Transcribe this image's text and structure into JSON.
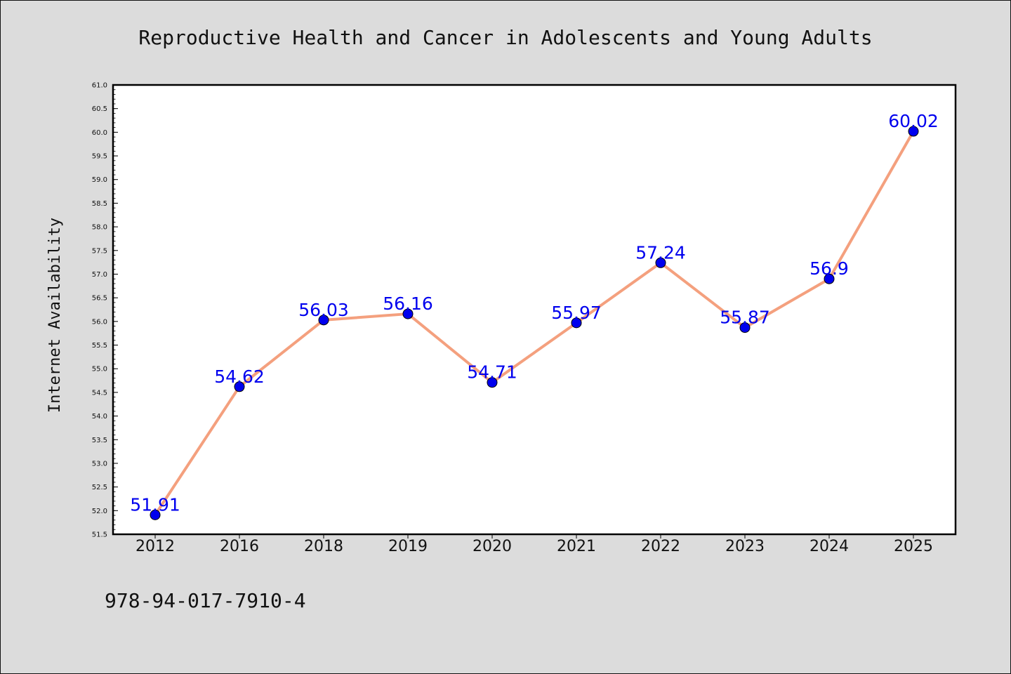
{
  "chart_data": {
    "type": "line",
    "title": "Reproductive Health and Cancer in Adolescents and Young Adults",
    "xlabel": "",
    "ylabel": "Internet Availability",
    "categories": [
      "2012",
      "2016",
      "2018",
      "2019",
      "2020",
      "2021",
      "2022",
      "2023",
      "2024",
      "2025"
    ],
    "values": [
      51.91,
      54.62,
      56.03,
      56.16,
      54.71,
      55.97,
      57.24,
      55.87,
      56.9,
      60.02
    ],
    "data_labels": [
      "51.91",
      "54.62",
      "56.03",
      "56.16",
      "54.71",
      "55.97",
      "57.24",
      "55.87",
      "56.9",
      "60.02"
    ],
    "ylim": [
      51.5,
      61.0
    ],
    "yticks": [
      "51.5",
      "52.0",
      "52.5",
      "53.0",
      "53.5",
      "54.0",
      "54.5",
      "55.0",
      "55.5",
      "56.0",
      "56.5",
      "57.0",
      "57.5",
      "58.0",
      "58.5",
      "59.0",
      "59.5",
      "60.0",
      "60.5",
      "61.0"
    ],
    "grid": false,
    "legend": "none",
    "colors": {
      "line": "#f4a07e",
      "marker": "#0000ee",
      "label": "#0000ee",
      "background": "#dcdcdc",
      "plot_background": "#ffffff"
    }
  },
  "footer": {
    "text": "978-94-017-7910-4"
  }
}
